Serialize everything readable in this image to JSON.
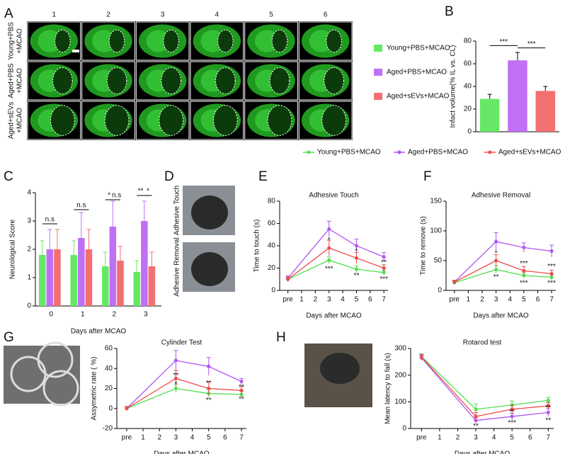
{
  "panel_a": {
    "label": "A",
    "columns": [
      "1",
      "2",
      "3",
      "4",
      "5",
      "6"
    ],
    "rows": [
      [
        "Young+PBS",
        "+MCAO"
      ],
      [
        "Aged+PBS",
        "+MCAO"
      ],
      [
        "Aged+sEVs",
        "+MCAO"
      ]
    ]
  },
  "panel_d": {
    "label": "D",
    "images": [
      "Adhesive Touch",
      "Adhesive Removal"
    ]
  },
  "chart_data": [
    {
      "type": "bar",
      "panel": "B",
      "ylabel": "Infact volume(% IL vs. CL)",
      "categories": [
        "Young+PBS+MCAO",
        "Aged+PBS+MCAO",
        "Aged+sEVs+MCAO"
      ],
      "values": [
        29,
        63,
        36
      ],
      "errors": [
        4,
        7,
        4
      ],
      "colors": [
        "#66e866",
        "#c070f5",
        "#f27070"
      ],
      "ylim": [
        0,
        80
      ],
      "yticks": [
        0,
        20,
        40,
        60,
        80
      ],
      "annotations": [
        {
          "text": "***",
          "between": [
            0,
            1
          ],
          "y": 76
        },
        {
          "text": "***",
          "between": [
            1,
            2
          ],
          "y": 74
        }
      ]
    },
    {
      "type": "groupedbar",
      "panel": "C",
      "ylabel": "Neurological Score",
      "xlabel": "Days after MCAO",
      "categories": [
        "0",
        "1",
        "2",
        "3"
      ],
      "series": [
        {
          "name": "Young+PBS+MCAO",
          "color": "#66e866",
          "values": [
            1.8,
            1.8,
            1.4,
            1.2
          ],
          "errors": [
            0.5,
            0.5,
            0.5,
            0.4
          ]
        },
        {
          "name": "Aged+PBS+MCAO",
          "color": "#c070f5",
          "values": [
            2.0,
            2.4,
            2.8,
            3.0
          ],
          "errors": [
            0.7,
            0.9,
            0.9,
            0.7
          ]
        },
        {
          "name": "Aged+sEVs+MCAO",
          "color": "#f27070",
          "values": [
            2.0,
            2.0,
            1.6,
            1.4
          ],
          "errors": [
            0.7,
            0.7,
            0.5,
            0.5
          ]
        }
      ],
      "ylim": [
        0,
        4
      ],
      "yticks": [
        0,
        1,
        2,
        3,
        4
      ],
      "annotations": [
        {
          "text": "n.s",
          "category": 0,
          "between": [
            0,
            2
          ],
          "y": 2.9
        },
        {
          "text": "n.s",
          "category": 1,
          "between": [
            0,
            2
          ],
          "y": 3.4
        },
        {
          "text": "*",
          "category": 2,
          "between": [
            0,
            1
          ],
          "y": 3.75
        },
        {
          "text": "n.s",
          "category": 2,
          "between": [
            1,
            2
          ],
          "y": 3.75
        },
        {
          "text": "**",
          "category": 3,
          "between": [
            0,
            1
          ],
          "y": 3.9
        },
        {
          "text": "*",
          "category": 3,
          "between": [
            1,
            2
          ],
          "y": 3.9
        }
      ]
    },
    {
      "type": "line",
      "panel": "E",
      "title": "Adhesive Touch",
      "ylabel": "Time to touch (s)",
      "xlabel": "Days after MCAO",
      "x": [
        0,
        3,
        5,
        7
      ],
      "series": [
        {
          "name": "Young+PBS+MCAO",
          "color": "#4fe04f",
          "values": [
            10,
            27,
            19,
            16
          ],
          "errors": [
            2,
            3,
            3,
            2
          ]
        },
        {
          "name": "Aged+PBS+MCAO",
          "color": "#b056f2",
          "values": [
            11,
            55,
            40,
            30
          ],
          "errors": [
            2,
            7,
            6,
            4
          ]
        },
        {
          "name": "Aged+sEVs+MCAO",
          "color": "#f04b4b",
          "values": [
            10,
            38,
            29,
            20
          ],
          "errors": [
            2,
            7,
            5,
            3
          ]
        }
      ],
      "xlim": [
        -0.6,
        7.3
      ],
      "xticks": [
        {
          "value": 0,
          "label": "pre"
        },
        1,
        2,
        3,
        4,
        5,
        6,
        7
      ],
      "ylim": [
        0,
        80
      ],
      "yticks": [
        0,
        20,
        40,
        60,
        80
      ],
      "annotations": [
        {
          "text": "*",
          "x": 3,
          "y": 45
        },
        {
          "text": "***",
          "x": 3,
          "y": 19
        },
        {
          "text": "*",
          "x": 5,
          "y": 35
        },
        {
          "text": "**",
          "x": 5,
          "y": 13
        },
        {
          "text": "**",
          "x": 7,
          "y": 25
        },
        {
          "text": "***",
          "x": 7,
          "y": 10
        }
      ]
    },
    {
      "type": "line",
      "panel": "F",
      "title": "Adhesive Removal",
      "ylabel": "Time to remove (s)",
      "xlabel": "Days after MCAO",
      "x": [
        0,
        3,
        5,
        7
      ],
      "series": [
        {
          "name": "Young+PBS+MCAO",
          "color": "#4fe04f",
          "values": [
            13,
            35,
            25,
            22
          ],
          "errors": [
            3,
            6,
            5,
            4
          ]
        },
        {
          "name": "Aged+PBS+MCAO",
          "color": "#b056f2",
          "values": [
            14,
            82,
            72,
            66
          ],
          "errors": [
            3,
            15,
            8,
            10
          ]
        },
        {
          "name": "Aged+sEVs+MCAO",
          "color": "#f04b4b",
          "values": [
            14,
            50,
            33,
            28
          ],
          "errors": [
            3,
            10,
            7,
            6
          ]
        }
      ],
      "xlim": [
        -0.6,
        7.3
      ],
      "xticks": [
        {
          "value": 0,
          "label": "pre"
        },
        1,
        2,
        3,
        4,
        5,
        6,
        7
      ],
      "ylim": [
        0,
        150
      ],
      "yticks": [
        0,
        50,
        100,
        150
      ],
      "annotations": [
        {
          "text": "*",
          "x": 3,
          "y": 62
        },
        {
          "text": "**",
          "x": 3,
          "y": 22
        },
        {
          "text": "***",
          "x": 5,
          "y": 45
        },
        {
          "text": "***",
          "x": 5,
          "y": 12
        },
        {
          "text": "***",
          "x": 7,
          "y": 40
        },
        {
          "text": "***",
          "x": 7,
          "y": 12
        }
      ]
    },
    {
      "type": "line",
      "panel": "G",
      "title": "Cylinder Test",
      "ylabel": "Assymetric rate (  %)",
      "xlabel": "Days after MCAO",
      "x": [
        0,
        3,
        5,
        7
      ],
      "series": [
        {
          "name": "Young+PBS+MCAO",
          "color": "#4fe04f",
          "values": [
            0,
            20,
            15,
            14
          ],
          "errors": [
            2,
            4,
            4,
            3
          ]
        },
        {
          "name": "Aged+PBS+MCAO",
          "color": "#b056f2",
          "values": [
            0,
            48,
            42,
            27
          ],
          "errors": [
            2,
            10,
            9,
            3
          ]
        },
        {
          "name": "Aged+sEVs+MCAO",
          "color": "#f04b4b",
          "values": [
            0,
            30,
            20,
            18
          ],
          "errors": [
            2,
            8,
            7,
            4
          ]
        }
      ],
      "xlim": [
        -0.6,
        7.3
      ],
      "xticks": [
        {
          "value": 0,
          "label": "pre"
        },
        1,
        2,
        3,
        4,
        5,
        6,
        7
      ],
      "ylim": [
        -20,
        60
      ],
      "yticks": [
        -20,
        0,
        20,
        40,
        60
      ],
      "annotations": [
        {
          "text": "**",
          "x": 3,
          "y": 33
        },
        {
          "text": "*",
          "x": 3,
          "y": 24
        },
        {
          "text": "**",
          "x": 5,
          "y": 25
        },
        {
          "text": "**",
          "x": 5,
          "y": 8
        },
        {
          "text": "**",
          "x": 7,
          "y": 21
        },
        {
          "text": "**",
          "x": 7,
          "y": 9
        }
      ]
    },
    {
      "type": "line",
      "panel": "H",
      "title": "Rotarod test",
      "ylabel": "Mean latency to fall (s)",
      "xlabel": "Days after MCAO",
      "x": [
        0,
        3,
        5,
        7
      ],
      "series": [
        {
          "name": "Young+PBS+MCAO",
          "color": "#4fe04f",
          "values": [
            270,
            72,
            88,
            105
          ],
          "errors": [
            10,
            20,
            15,
            12
          ]
        },
        {
          "name": "Aged+PBS+MCAO",
          "color": "#b056f2",
          "values": [
            265,
            30,
            45,
            60
          ],
          "errors": [
            10,
            10,
            12,
            15
          ]
        },
        {
          "name": "Aged+sEVs+MCAO",
          "color": "#f04b4b",
          "values": [
            268,
            45,
            72,
            85
          ],
          "errors": [
            10,
            15,
            15,
            12
          ]
        }
      ],
      "xlim": [
        -0.6,
        7.3
      ],
      "xticks": [
        {
          "value": 0,
          "label": "pre"
        },
        1,
        2,
        3,
        4,
        5,
        6,
        7
      ],
      "ylim": [
        0,
        300
      ],
      "yticks": [
        0,
        100,
        200,
        300
      ],
      "annotations": [
        {
          "text": "**",
          "x": 3,
          "y": 8
        },
        {
          "text": "**",
          "x": 5,
          "y": 62
        },
        {
          "text": "***",
          "x": 5,
          "y": 20
        },
        {
          "text": "**",
          "x": 7,
          "y": 78
        },
        {
          "text": "**",
          "x": 7,
          "y": 30
        }
      ]
    }
  ]
}
